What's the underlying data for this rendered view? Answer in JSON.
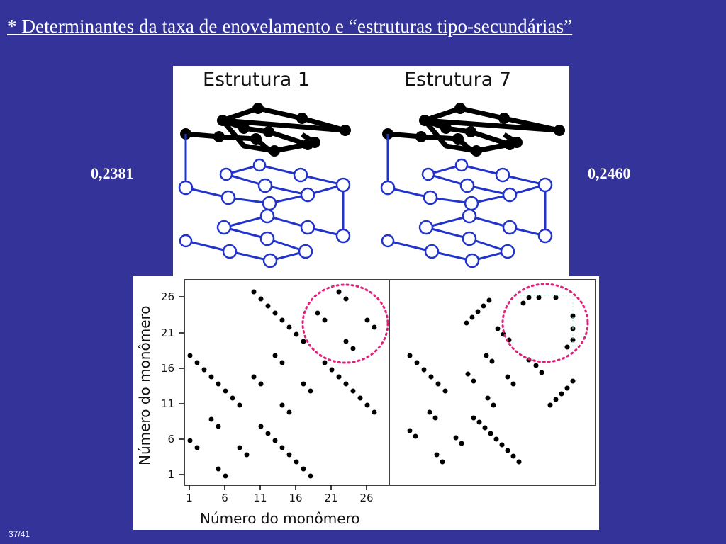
{
  "slide": {
    "title": "* Determinantes da taxa de enovelamento e “estruturas tipo-secundárias”",
    "page": "37/41"
  },
  "structures": [
    {
      "label": "Estrutura 1",
      "value": "0,2381"
    },
    {
      "label": "Estrutura 7",
      "value": "0,2460"
    }
  ],
  "contact_map": {
    "xlabel": "Número do monômero",
    "ylabel": "Número do monômero",
    "x_ticks": [
      "1",
      "6",
      "11",
      "16",
      "21",
      "26"
    ],
    "y_ticks": [
      "26",
      "21",
      "16",
      "11",
      "6",
      "1"
    ]
  },
  "colors": {
    "background": "#333399",
    "chain_blue": "#2233cc",
    "highlight_circle": "#e0207a"
  }
}
